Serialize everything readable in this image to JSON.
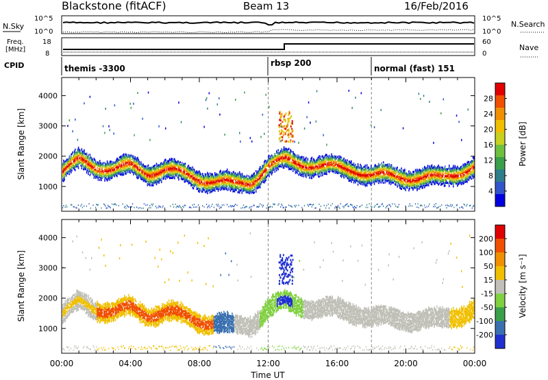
{
  "header": {
    "station": "Blackstone (fitACF)",
    "beam": "Beam 13",
    "date": "16/Feb/2016"
  },
  "panels": {
    "nsky": {
      "label": "N.Sky",
      "tick_high": "10^5",
      "tick_low": "10^0",
      "right_tick_high": "10^5",
      "right_tick_low": "10^0",
      "right_label": "N.Search"
    },
    "freq": {
      "label_line1": "Freq.",
      "label_line2": "[MHz]",
      "tick_high": "18",
      "tick_low": "8",
      "right_tick_high": "60",
      "right_tick_low": "0",
      "right_label": "Nave"
    },
    "cpid": {
      "label": "CPID",
      "segments": [
        {
          "name": "themis -3300",
          "start_hour": 0
        },
        {
          "name": "rbsp 200",
          "start_hour": 12
        },
        {
          "name": "normal (fast) 151",
          "start_hour": 18
        }
      ]
    }
  },
  "chart_data": [
    {
      "type": "heatmap",
      "quantity": "Power",
      "ylabel": "Slant Range [km]",
      "xlabel": "Time UT",
      "xlim_hours": [
        0,
        24
      ],
      "ylim_km": [
        180,
        4600
      ],
      "y_ticks": [
        "1000",
        "2000",
        "3000",
        "4000"
      ],
      "x_ticks": [
        "00:00",
        "04:00",
        "08:00",
        "12:00",
        "16:00",
        "20:00",
        "00:00"
      ],
      "colorbar": {
        "label": "Power [dB]",
        "ticks": [
          "4",
          "8",
          "12",
          "16",
          "20",
          "24",
          "28"
        ],
        "colors": [
          "#0000e0",
          "#3355cc",
          "#2e7f8a",
          "#3aa04a",
          "#70c040",
          "#c8d020",
          "#f0c000",
          "#f09000",
          "#f05000",
          "#e00000"
        ]
      },
      "bands": [
        {
          "name": "main echo band",
          "range_km": [
            [
              0,
              1500
            ],
            [
              1,
              1900
            ],
            [
              2,
              1700
            ],
            [
              3,
              1600
            ],
            [
              4,
              1700
            ],
            [
              5,
              1500
            ],
            [
              6,
              1600
            ],
            [
              8,
              1300
            ],
            [
              9,
              1200
            ],
            [
              10,
              1100
            ],
            [
              11,
              1200
            ],
            [
              12,
              1700
            ],
            [
              13,
              1900
            ],
            [
              14,
              1800
            ],
            [
              15,
              1700
            ],
            [
              16,
              1650
            ],
            [
              17,
              1600
            ],
            [
              18,
              1400
            ],
            [
              20,
              1350
            ],
            [
              22,
              1300
            ],
            [
              23,
              1500
            ],
            [
              24,
              1700
            ]
          ]
        }
      ]
    },
    {
      "type": "heatmap",
      "quantity": "Velocity",
      "ylabel": "Slant Range [km]",
      "xlabel": "Time UT",
      "xlim_hours": [
        0,
        24
      ],
      "ylim_km": [
        180,
        4600
      ],
      "y_ticks": [
        "1000",
        "2000",
        "3000",
        "4000"
      ],
      "x_ticks": [
        "00:00",
        "04:00",
        "08:00",
        "12:00",
        "16:00",
        "20:00",
        "00:00"
      ],
      "colorbar": {
        "label": "Velocity [m s⁻¹]",
        "ticks": [
          "200",
          "100",
          "50",
          "15",
          "-15",
          "-50",
          "-100",
          "-200"
        ],
        "colors": [
          "#2030d0",
          "#3a70b0",
          "#3aa04a",
          "#80d040",
          "#c0c0b8",
          "#f0c000",
          "#f09000",
          "#f05000",
          "#e00000"
        ]
      }
    }
  ]
}
